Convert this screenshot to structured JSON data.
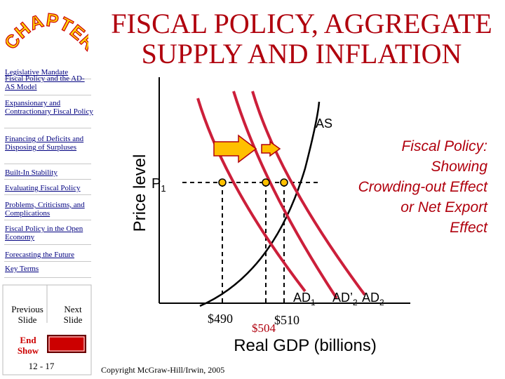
{
  "title": {
    "line1": "FISCAL POLICY, AGGREGATE",
    "line2": "SUPPLY AND INFLATION"
  },
  "logo_text": "CHAPTER",
  "sidebar": {
    "items": [
      {
        "label": "Legislative Mandate"
      },
      {
        "label": "Fiscal Policy and the AD-AS Model"
      },
      {
        "label": "Expansionary and Contractionary Fiscal Policy"
      },
      {
        "label": "Financing of Deficits and Disposing of Surpluses"
      },
      {
        "label": "Built-In Stability"
      },
      {
        "label": "Evaluating Fiscal Policy"
      },
      {
        "label": "Problems, Criticisms, and Complications"
      },
      {
        "label": "Fiscal Policy in the Open Economy"
      },
      {
        "label": "Forecasting the Future"
      },
      {
        "label": "Key Terms"
      }
    ],
    "buttons": {
      "previous": [
        "Previous",
        "Slide"
      ],
      "next": [
        "Next",
        "Slide"
      ],
      "end": [
        "End",
        "Show"
      ]
    },
    "slide_number": "12 - 17"
  },
  "colors": {
    "title": "#b0000d",
    "sidebar_bg": "#ffffff",
    "curve": "#cc1f3a",
    "as_curve": "#000000",
    "arrow": "#ffc000",
    "text_accent": "#b0000d",
    "end_button": "#cc0000"
  },
  "chart_data": {
    "type": "line",
    "ylabel": "Price level",
    "xlabel": "Real GDP (billions)",
    "ylevel_label": "P",
    "ylevel_sub": "1",
    "annotation": [
      "Fiscal Policy:",
      "Showing",
      "Crowding-out Effect",
      "or Net Export",
      "Effect"
    ],
    "series": [
      {
        "name": "AS"
      },
      {
        "name": "AD",
        "sub": "1"
      },
      {
        "name": "AD’",
        "sub": "2"
      },
      {
        "name": "AD",
        "sub": "2"
      }
    ],
    "x_ticks": [
      "$490",
      "$504",
      "$510"
    ],
    "points_x": [
      490,
      504,
      510
    ]
  },
  "copyright": "Copyright McGraw-Hill/Irwin, 2005"
}
